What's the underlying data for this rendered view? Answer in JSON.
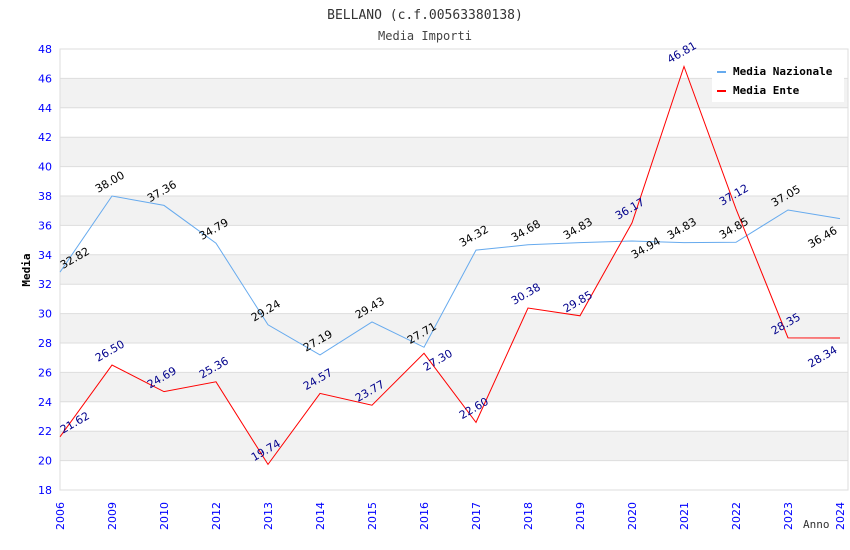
{
  "chart_data": {
    "type": "line",
    "title": "BELLANO (c.f.00563380138)",
    "subtitle": "Media Importi",
    "xlabel": "Anno",
    "ylabel": "Media",
    "ylim": [
      18,
      48
    ],
    "yticks": [
      18,
      20,
      22,
      24,
      26,
      28,
      30,
      32,
      34,
      36,
      38,
      40,
      42,
      44,
      46,
      48
    ],
    "grid": true,
    "legend_position": "top-right",
    "categories": [
      "2006",
      "2009",
      "2010",
      "2012",
      "2013",
      "2014",
      "2015",
      "2016",
      "2017",
      "2018",
      "2019",
      "2020",
      "2021",
      "2022",
      "2023",
      "2024"
    ],
    "series": [
      {
        "name": "Media Nazionale",
        "color": "#66aaee",
        "label_color": "#000000",
        "values": [
          32.82,
          38.0,
          37.36,
          34.79,
          29.24,
          27.19,
          29.43,
          27.71,
          34.32,
          34.68,
          34.83,
          34.94,
          34.83,
          34.85,
          37.05,
          36.46
        ]
      },
      {
        "name": "Media Ente",
        "color": "#ff0000",
        "label_color": "#00008b",
        "values": [
          21.62,
          26.5,
          24.69,
          25.36,
          19.74,
          24.57,
          23.77,
          27.3,
          22.6,
          30.38,
          29.85,
          36.17,
          46.81,
          37.12,
          28.35,
          28.34
        ]
      }
    ]
  }
}
